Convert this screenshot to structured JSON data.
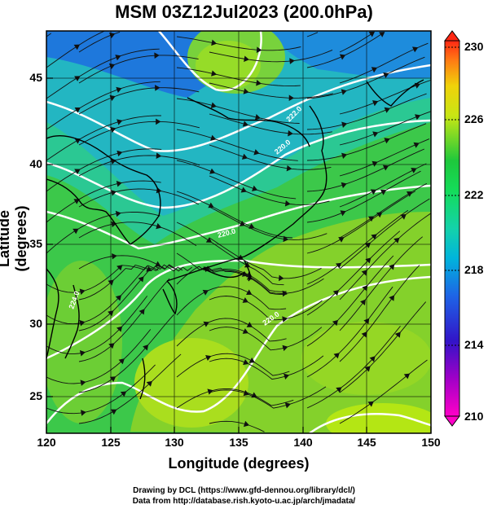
{
  "title": "MSM 03Z12Jul2023 (200.0hPa)",
  "axes": {
    "xlabel": "Longitude (degrees)",
    "ylabel": "Latitude  (degrees)",
    "x_ticks": [
      "120",
      "125",
      "130",
      "135",
      "140",
      "145",
      "150"
    ],
    "y_ticks": [
      "45",
      "40",
      "35",
      "30",
      "25"
    ],
    "xlim": [
      120,
      150
    ],
    "ylim": [
      22.4,
      47.6
    ]
  },
  "colorbar": {
    "ticks": [
      "230",
      "226",
      "222",
      "218",
      "214",
      "210"
    ],
    "range": [
      210,
      230
    ]
  },
  "contour_labels": [
    "220.0",
    "220.0",
    "220.0",
    "222.0",
    "224.0"
  ],
  "credits": {
    "line1": "Drawing by DCL (https://www.gfd-dennou.org/library/dcl/)",
    "line2": "Data from http://database.rish.kyoto-u.ac.jp/arch/jmadata/"
  },
  "colors": {
    "cold": "#1e64dc",
    "cyan": "#28d2c8",
    "green": "#28c83c",
    "yellow_green": "#b4e614"
  }
}
